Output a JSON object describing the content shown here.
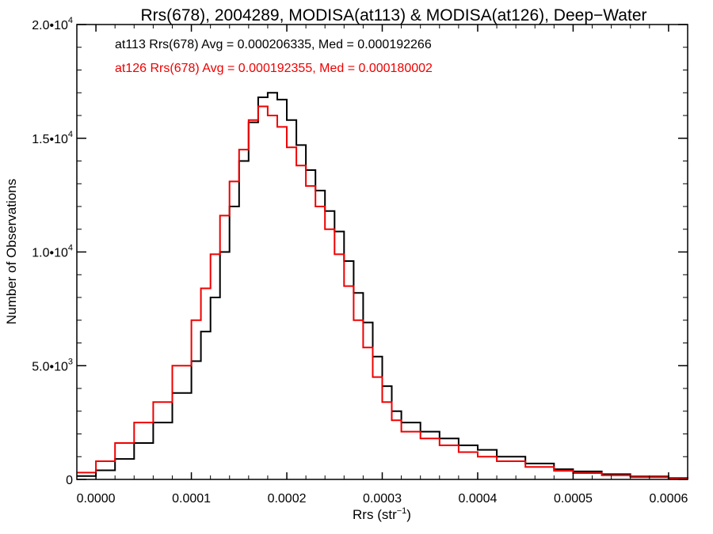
{
  "chart_data": {
    "type": "line",
    "title": "Rrs(678), 2004289, MODISA(at113) & MODISA(at126), Deep−Water",
    "xlabel": "Rrs (str⁻¹)",
    "ylabel": "Number of Observations",
    "xlim": [
      -2e-05,
      0.00062
    ],
    "ylim": [
      0,
      20000
    ],
    "x_ticks": [
      {
        "value": 0.0,
        "label": "0.0000"
      },
      {
        "value": 0.0001,
        "label": "0.0001"
      },
      {
        "value": 0.0002,
        "label": "0.0002"
      },
      {
        "value": 0.0003,
        "label": "0.0003"
      },
      {
        "value": 0.0004,
        "label": "0.0004"
      },
      {
        "value": 0.0005,
        "label": "0.0005"
      },
      {
        "value": 0.0006,
        "label": "0.0006"
      }
    ],
    "y_ticks": [
      {
        "value": 0,
        "label": "0"
      },
      {
        "value": 5000,
        "mantissa": "5.0•10",
        "exp": "3"
      },
      {
        "value": 10000,
        "mantissa": "1.0•10",
        "exp": "4"
      },
      {
        "value": 15000,
        "mantissa": "1.5•10",
        "exp": "4"
      },
      {
        "value": 20000,
        "mantissa": "2.0•10",
        "exp": "4"
      }
    ],
    "grid": false,
    "legend_position": "top-left",
    "series": [
      {
        "name": "at113",
        "color": "#000000",
        "annotation": "at113 Rrs(678) Avg = 0.000206335, Med = 0.000192266",
        "x": [
          -2e-05,
          0.0,
          2e-05,
          4e-05,
          6e-05,
          8e-05,
          0.0001,
          0.00011,
          0.00012,
          0.00013,
          0.00014,
          0.00015,
          0.00016,
          0.00017,
          0.00018,
          0.00019,
          0.0002,
          0.00021,
          0.00022,
          0.00023,
          0.00024,
          0.00025,
          0.00026,
          0.00027,
          0.00028,
          0.00029,
          0.0003,
          0.00031,
          0.00032,
          0.00034,
          0.00036,
          0.00038,
          0.0004,
          0.00042,
          0.00045,
          0.00048,
          0.0005,
          0.00053,
          0.00056,
          0.0006,
          0.00062
        ],
        "y": [
          150,
          400,
          900,
          1600,
          2500,
          3800,
          5200,
          6500,
          8000,
          10000,
          12000,
          14000,
          15700,
          16800,
          17000,
          16700,
          15800,
          14700,
          13600,
          12700,
          11800,
          10900,
          9600,
          8200,
          6900,
          5400,
          4100,
          3000,
          2500,
          2100,
          1800,
          1500,
          1300,
          1000,
          700,
          450,
          350,
          230,
          130,
          60,
          30
        ]
      },
      {
        "name": "at126",
        "color": "#ee0000",
        "annotation": "at126 Rrs(678) Avg = 0.000192355, Med = 0.000180002",
        "x": [
          -2e-05,
          0.0,
          2e-05,
          4e-05,
          6e-05,
          8e-05,
          0.0001,
          0.00011,
          0.00012,
          0.00013,
          0.00014,
          0.00015,
          0.00016,
          0.00017,
          0.00018,
          0.00019,
          0.0002,
          0.00021,
          0.00022,
          0.00023,
          0.00024,
          0.00025,
          0.00026,
          0.00027,
          0.00028,
          0.00029,
          0.0003,
          0.00031,
          0.00032,
          0.00034,
          0.00036,
          0.00038,
          0.0004,
          0.00042,
          0.00045,
          0.00048,
          0.0005,
          0.00053,
          0.00056,
          0.0006,
          0.00062
        ],
        "y": [
          300,
          800,
          1600,
          2500,
          3400,
          5000,
          7000,
          8400,
          9900,
          11600,
          13100,
          14500,
          15800,
          16400,
          16000,
          15500,
          14600,
          13800,
          12900,
          12000,
          11000,
          9900,
          8500,
          7000,
          5800,
          4500,
          3400,
          2600,
          2100,
          1800,
          1500,
          1200,
          1000,
          800,
          550,
          380,
          280,
          180,
          100,
          45,
          20
        ]
      }
    ]
  }
}
